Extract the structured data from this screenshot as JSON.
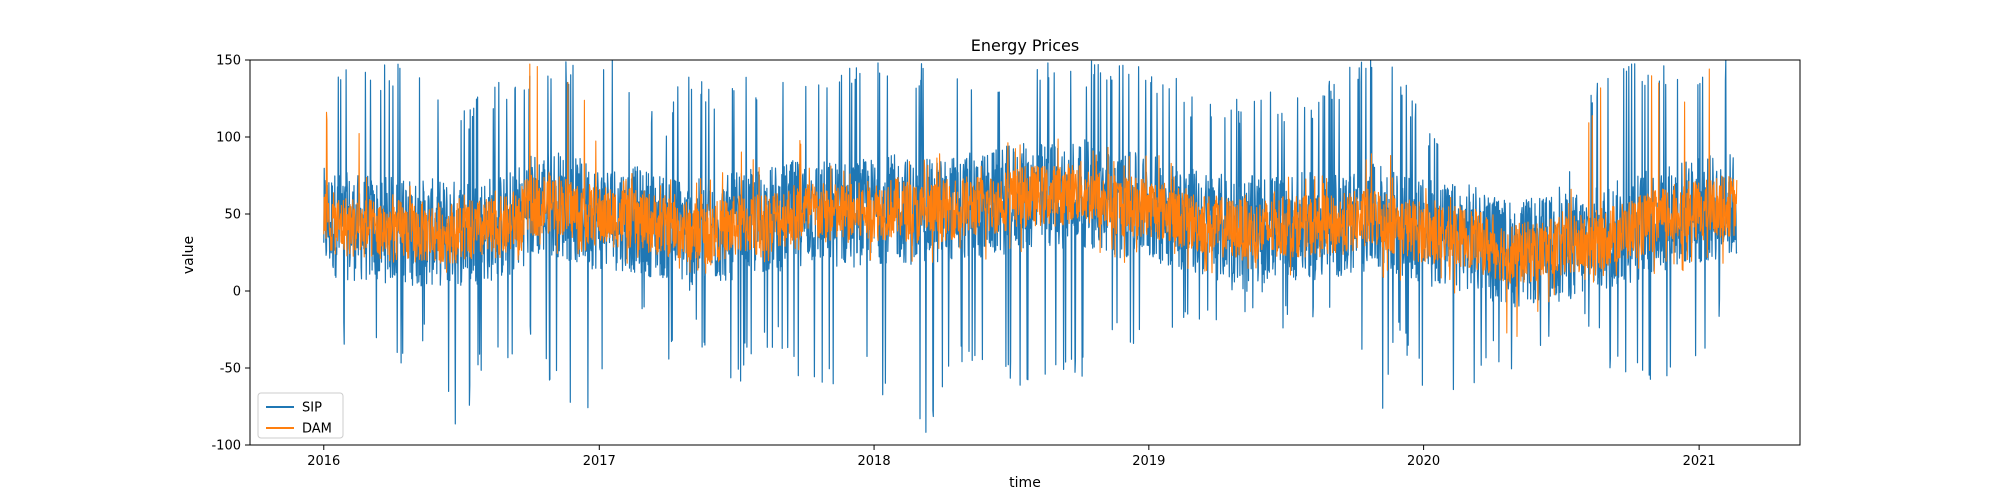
{
  "chart_data": {
    "type": "line",
    "title": "Energy Prices",
    "xlabel": "time",
    "ylabel": "value",
    "xlim": [
      "2015-09-25",
      "2021-05-15"
    ],
    "ylim": [
      -100,
      150
    ],
    "xticks": [
      "2016",
      "2017",
      "2018",
      "2019",
      "2020",
      "2021"
    ],
    "yticks": [
      -100,
      -50,
      0,
      50,
      100,
      150
    ],
    "grid": false,
    "legend": "lower-left",
    "series": [
      {
        "name": "SIP",
        "color": "#1f77b4",
        "x": [
          "2016-01-01",
          "2016-02-01",
          "2016-03-01",
          "2016-04-01",
          "2016-05-01",
          "2016-06-01",
          "2016-07-01",
          "2016-08-01",
          "2016-09-01",
          "2016-10-01",
          "2016-11-01",
          "2016-12-01",
          "2017-01-01",
          "2017-02-01",
          "2017-03-01",
          "2017-04-01",
          "2017-05-01",
          "2017-06-01",
          "2017-07-01",
          "2017-08-01",
          "2017-09-01",
          "2017-10-01",
          "2017-11-01",
          "2017-12-01",
          "2018-01-01",
          "2018-02-01",
          "2018-03-01",
          "2018-04-01",
          "2018-05-01",
          "2018-06-01",
          "2018-07-01",
          "2018-08-01",
          "2018-09-01",
          "2018-10-01",
          "2018-11-01",
          "2018-12-01",
          "2019-01-01",
          "2019-02-01",
          "2019-03-01",
          "2019-04-01",
          "2019-05-01",
          "2019-06-01",
          "2019-07-01",
          "2019-08-01",
          "2019-09-01",
          "2019-10-01",
          "2019-11-01",
          "2019-12-01",
          "2020-01-01",
          "2020-02-01",
          "2020-03-01",
          "2020-04-01",
          "2020-05-01",
          "2020-06-01",
          "2020-07-01",
          "2020-08-01",
          "2020-09-01",
          "2020-10-01",
          "2020-11-01",
          "2020-12-01",
          "2021-01-01",
          "2021-02-01",
          "2021-02-20"
        ],
        "mean": [
          45,
          42,
          40,
          40,
          38,
          38,
          38,
          40,
          42,
          55,
          58,
          52,
          48,
          48,
          45,
          42,
          38,
          38,
          42,
          45,
          48,
          52,
          50,
          50,
          52,
          54,
          50,
          52,
          55,
          55,
          60,
          62,
          62,
          65,
          58,
          55,
          55,
          50,
          45,
          42,
          40,
          40,
          42,
          42,
          42,
          45,
          48,
          42,
          38,
          35,
          35,
          28,
          24,
          26,
          28,
          30,
          35,
          40,
          45,
          50,
          52,
          55,
          55
        ],
        "high": [
          150,
          150,
          150,
          150,
          150,
          130,
          120,
          130,
          140,
          150,
          150,
          150,
          150,
          150,
          130,
          120,
          150,
          130,
          140,
          140,
          150,
          150,
          150,
          150,
          150,
          150,
          150,
          150,
          150,
          130,
          140,
          150,
          150,
          150,
          150,
          150,
          150,
          140,
          130,
          120,
          125,
          130,
          130,
          130,
          140,
          150,
          150,
          150,
          110,
          100,
          85,
          60,
          55,
          60,
          80,
          120,
          150,
          150,
          150,
          150,
          150,
          150,
          150
        ],
        "low": [
          -35,
          -40,
          -25,
          -62,
          -25,
          -55,
          -100,
          -45,
          -60,
          -30,
          -65,
          -100,
          -60,
          -30,
          -25,
          -50,
          -15,
          -72,
          -65,
          -35,
          -40,
          -72,
          -65,
          -55,
          -50,
          -100,
          -100,
          -75,
          -50,
          -55,
          -60,
          -65,
          -65,
          -60,
          -40,
          -40,
          -30,
          -35,
          -20,
          -20,
          -15,
          -20,
          -25,
          -30,
          -30,
          -35,
          -88,
          -35,
          -65,
          -65,
          -68,
          -50,
          -70,
          -50,
          -45,
          -30,
          -50,
          -65,
          -65,
          -55,
          -55,
          -20,
          -20
        ]
      },
      {
        "name": "DAM",
        "color": "#ff7f0e",
        "x": [
          "2016-01-01",
          "2016-02-01",
          "2016-03-01",
          "2016-04-01",
          "2016-05-01",
          "2016-06-01",
          "2016-07-01",
          "2016-08-01",
          "2016-09-01",
          "2016-10-01",
          "2016-11-01",
          "2016-12-01",
          "2017-01-01",
          "2017-02-01",
          "2017-03-01",
          "2017-04-01",
          "2017-05-01",
          "2017-06-01",
          "2017-07-01",
          "2017-08-01",
          "2017-09-01",
          "2017-10-01",
          "2017-11-01",
          "2017-12-01",
          "2018-01-01",
          "2018-02-01",
          "2018-03-01",
          "2018-04-01",
          "2018-05-01",
          "2018-06-01",
          "2018-07-01",
          "2018-08-01",
          "2018-09-01",
          "2018-10-01",
          "2018-11-01",
          "2018-12-01",
          "2019-01-01",
          "2019-02-01",
          "2019-03-01",
          "2019-04-01",
          "2019-05-01",
          "2019-06-01",
          "2019-07-01",
          "2019-08-01",
          "2019-09-01",
          "2019-10-01",
          "2019-11-01",
          "2019-12-01",
          "2020-01-01",
          "2020-02-01",
          "2020-03-01",
          "2020-04-01",
          "2020-05-01",
          "2020-06-01",
          "2020-07-01",
          "2020-08-01",
          "2020-09-01",
          "2020-10-01",
          "2020-11-01",
          "2020-12-01",
          "2021-01-01",
          "2021-02-01",
          "2021-02-20"
        ],
        "mean": [
          45,
          42,
          40,
          40,
          38,
          38,
          38,
          40,
          42,
          55,
          58,
          52,
          48,
          48,
          45,
          42,
          38,
          38,
          42,
          45,
          48,
          52,
          50,
          50,
          52,
          54,
          50,
          52,
          55,
          55,
          60,
          62,
          62,
          65,
          58,
          55,
          55,
          50,
          45,
          42,
          40,
          40,
          42,
          42,
          42,
          45,
          48,
          42,
          38,
          35,
          35,
          28,
          24,
          26,
          28,
          30,
          35,
          40,
          45,
          50,
          52,
          55,
          55
        ],
        "high": [
          120,
          150,
          80,
          75,
          72,
          70,
          68,
          72,
          80,
          150,
          150,
          150,
          90,
          80,
          80,
          78,
          72,
          75,
          110,
          85,
          150,
          90,
          88,
          90,
          92,
          95,
          90,
          92,
          95,
          95,
          100,
          100,
          105,
          100,
          95,
          92,
          92,
          85,
          80,
          75,
          72,
          72,
          75,
          75,
          78,
          82,
          100,
          80,
          70,
          65,
          62,
          50,
          45,
          48,
          55,
          100,
          150,
          150,
          150,
          110,
          150,
          150,
          150
        ],
        "low": [
          10,
          12,
          15,
          15,
          12,
          12,
          12,
          15,
          18,
          20,
          22,
          20,
          18,
          18,
          15,
          12,
          10,
          10,
          12,
          15,
          18,
          20,
          18,
          18,
          18,
          20,
          18,
          18,
          20,
          20,
          22,
          25,
          25,
          25,
          20,
          18,
          18,
          15,
          12,
          10,
          10,
          10,
          10,
          10,
          8,
          8,
          5,
          5,
          0,
          0,
          -5,
          -18,
          -40,
          -18,
          0,
          0,
          5,
          8,
          10,
          12,
          12,
          12,
          12
        ]
      }
    ]
  }
}
